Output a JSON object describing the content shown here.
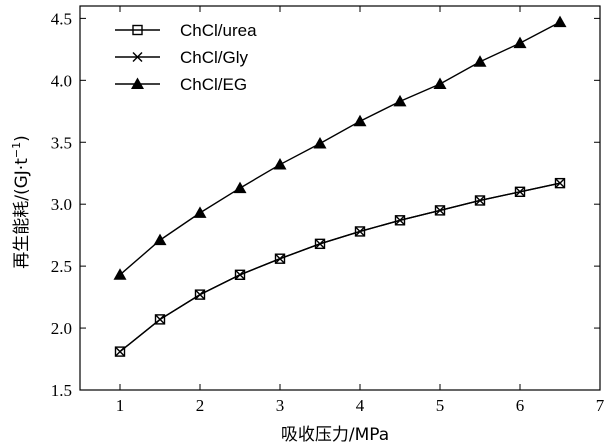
{
  "chart_data": {
    "type": "line",
    "title": "",
    "xlabel": "吸收压力/MPa",
    "ylabel_main": "再生能耗/(GJ·t",
    "ylabel_sup": "−1",
    "ylabel_close": ")",
    "xlim": [
      0.5,
      7
    ],
    "ylim": [
      1.5,
      4.6
    ],
    "xticks": [
      1,
      2,
      3,
      4,
      5,
      6,
      7
    ],
    "yticks": [
      1.5,
      2.0,
      2.5,
      3.0,
      3.5,
      4.0,
      4.5
    ],
    "xtick_labels": [
      "1",
      "2",
      "3",
      "4",
      "5",
      "6",
      "7"
    ],
    "ytick_labels": [
      "1.5",
      "2.0",
      "2.5",
      "3.0",
      "3.5",
      "4.0",
      "4.5"
    ],
    "x": [
      1,
      1.5,
      2,
      2.5,
      3,
      3.5,
      4,
      4.5,
      5,
      5.5,
      6,
      6.5
    ],
    "legend_position": "top-left",
    "series": [
      {
        "name": "ChCl/urea",
        "marker": "square",
        "values": [
          1.81,
          2.07,
          2.27,
          2.43,
          2.56,
          2.68,
          2.78,
          2.87,
          2.95,
          3.03,
          3.1,
          3.17
        ]
      },
      {
        "name": "ChCl/Gly",
        "marker": "x",
        "values": [
          1.81,
          2.07,
          2.27,
          2.43,
          2.56,
          2.68,
          2.78,
          2.87,
          2.95,
          3.03,
          3.1,
          3.17
        ]
      },
      {
        "name": "ChCl/EG",
        "marker": "triangle",
        "values": [
          2.43,
          2.71,
          2.93,
          3.13,
          3.32,
          3.49,
          3.67,
          3.83,
          3.97,
          4.15,
          4.3,
          4.47
        ]
      }
    ]
  }
}
